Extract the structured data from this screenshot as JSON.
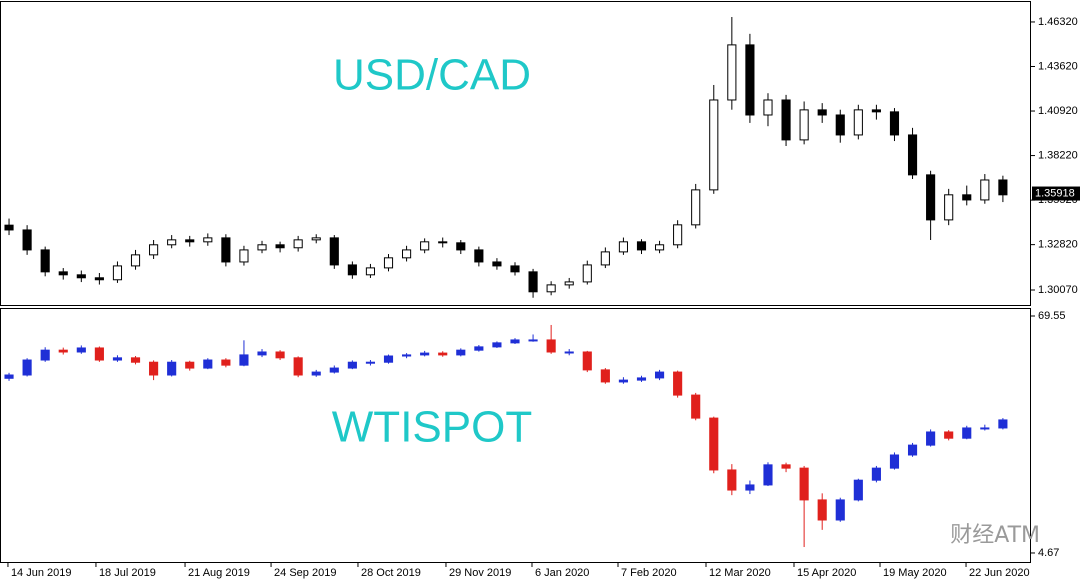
{
  "chart_data": [
    {
      "type": "candlestick",
      "title": "USD/CAD",
      "title_color": "#1fc8c8",
      "up_color": "#ffffff",
      "down_color": "#000000",
      "wick_color": "#000000",
      "ylim": [
        1.2916,
        1.4753
      ],
      "yticks": [
        {
          "value": 1.4632,
          "label": "1.46320"
        },
        {
          "value": 1.4362,
          "label": "1.43620"
        },
        {
          "value": 1.4092,
          "label": "1.40920"
        },
        {
          "value": 1.3822,
          "label": "1.38220"
        },
        {
          "value": 1.3552,
          "label": "1.35520"
        },
        {
          "value": 1.3282,
          "label": "1.32820"
        },
        {
          "value": 1.3007,
          "label": "1.30070"
        }
      ],
      "current_price": 1.35918,
      "xlim": [
        -0.5,
        56.5
      ],
      "open": [
        1.34,
        1.3371,
        1.325,
        1.3117,
        1.3099,
        1.3081,
        1.3069,
        1.3153,
        1.322,
        1.3281,
        1.3311,
        1.3299,
        1.3323,
        1.3177,
        1.325,
        1.3281,
        1.3263,
        1.3311,
        1.3323,
        1.3159,
        1.3099,
        1.3141,
        1.3202,
        1.325,
        1.3299,
        1.3293,
        1.325,
        1.3177,
        1.3153,
        1.3117,
        1.2996,
        1.3038,
        1.3056,
        1.3159,
        1.3238,
        1.3299,
        1.325,
        1.3281,
        1.3402,
        1.3614,
        1.4159,
        1.4493,
        1.4068,
        1.4159,
        1.3917,
        1.4099,
        1.4068,
        1.3947,
        1.4099,
        1.4087,
        1.3947,
        1.3705,
        1.3432,
        1.3584,
        1.3553,
        1.3674
      ],
      "high": [
        1.344,
        1.34,
        1.327,
        1.314,
        1.3125,
        1.311,
        1.318,
        1.325,
        1.331,
        1.334,
        1.3335,
        1.335,
        1.3345,
        1.3275,
        1.3305,
        1.33,
        1.3335,
        1.3345,
        1.334,
        1.318,
        1.3165,
        1.3225,
        1.3275,
        1.332,
        1.3325,
        1.331,
        1.327,
        1.32,
        1.3175,
        1.3135,
        1.306,
        1.308,
        1.3185,
        1.3265,
        1.3325,
        1.3315,
        1.3305,
        1.343,
        1.365,
        1.425,
        1.4662,
        1.456,
        1.42,
        1.419,
        1.415,
        1.414,
        1.41,
        1.413,
        1.413,
        1.411,
        1.399,
        1.373,
        1.362,
        1.364,
        1.371,
        1.37
      ],
      "low": [
        1.334,
        1.322,
        1.309,
        1.307,
        1.3055,
        1.304,
        1.305,
        1.313,
        1.3195,
        1.326,
        1.327,
        1.3275,
        1.315,
        1.3155,
        1.323,
        1.3235,
        1.324,
        1.329,
        1.3135,
        1.3075,
        1.308,
        1.312,
        1.318,
        1.323,
        1.3265,
        1.3225,
        1.315,
        1.313,
        1.3095,
        1.296,
        1.2975,
        1.3015,
        1.304,
        1.314,
        1.322,
        1.3225,
        1.323,
        1.326,
        1.338,
        1.359,
        1.41,
        1.402,
        1.4,
        1.388,
        1.389,
        1.402,
        1.39,
        1.392,
        1.404,
        1.391,
        1.368,
        1.331,
        1.34,
        1.352,
        1.353,
        1.354
      ],
      "close": [
        1.3371,
        1.325,
        1.3117,
        1.3099,
        1.3081,
        1.3069,
        1.3153,
        1.322,
        1.3281,
        1.3311,
        1.3299,
        1.3323,
        1.3177,
        1.325,
        1.3281,
        1.3263,
        1.3311,
        1.3323,
        1.3159,
        1.3099,
        1.3141,
        1.3202,
        1.325,
        1.3299,
        1.3293,
        1.325,
        1.3177,
        1.3153,
        1.3117,
        1.2996,
        1.3038,
        1.3056,
        1.3159,
        1.3238,
        1.3299,
        1.325,
        1.3281,
        1.3402,
        1.3614,
        1.4159,
        1.4493,
        1.4068,
        1.4159,
        1.3917,
        1.4099,
        1.4068,
        1.3947,
        1.4099,
        1.4087,
        1.3947,
        1.3705,
        1.3432,
        1.3584,
        1.3553,
        1.3674,
        1.3584
      ]
    },
    {
      "type": "candlestick",
      "title": "WTISPOT",
      "title_color": "#1fc8c8",
      "up_color": "#1f2fd6",
      "down_color": "#e0201c",
      "ylim": [
        2.2,
        71.47
      ],
      "yticks": [
        69.55,
        4.67
      ],
      "xlim": [
        -0.5,
        56.5
      ],
      "xticks": [
        {
          "value": -0.06,
          "label": "14 Jun 2019"
        },
        {
          "value": 4.81,
          "label": "18 Jul 2019"
        },
        {
          "value": 9.74,
          "label": "21 Aug 2019"
        },
        {
          "value": 14.5,
          "label": "24 Sep 2019"
        },
        {
          "value": 19.31,
          "label": "28 Oct 2019"
        },
        {
          "value": 24.18,
          "label": "29 Nov 2019"
        },
        {
          "value": 28.94,
          "label": "6 Jan 2020"
        },
        {
          "value": 33.7,
          "label": "7 Feb 2020"
        },
        {
          "value": 38.57,
          "label": "12 Mar 2020"
        },
        {
          "value": 43.44,
          "label": "15 Apr 2020"
        },
        {
          "value": 48.2,
          "label": "19 May 2020"
        },
        {
          "value": 52.96,
          "label": "22 Jun 2020"
        }
      ],
      "open": [
        52.5,
        53.4,
        57.5,
        60.2,
        59.7,
        60.8,
        57.5,
        58.1,
        56.9,
        53.4,
        56.9,
        55.3,
        57.5,
        56.1,
        58.9,
        59.7,
        58.1,
        53.4,
        54.2,
        55.3,
        56.9,
        56.9,
        58.6,
        58.9,
        59.4,
        58.9,
        60.2,
        61.1,
        62.2,
        63.0,
        63.0,
        59.7,
        59.7,
        54.8,
        51.5,
        52.0,
        52.6,
        54.2,
        47.9,
        41.6,
        27.4,
        21.9,
        23.3,
        28.8,
        27.9,
        19.2,
        13.7,
        19.2,
        24.6,
        27.9,
        31.5,
        34.2,
        37.8,
        36.1,
        38.9,
        38.9
      ],
      "high": [
        54.0,
        58.0,
        61.0,
        60.9,
        61.5,
        61.2,
        58.8,
        58.6,
        57.4,
        57.5,
        57.3,
        58.0,
        58.0,
        62.9,
        60.5,
        60.2,
        58.5,
        54.8,
        56.0,
        57.4,
        57.5,
        59.0,
        59.4,
        60.0,
        59.9,
        60.7,
        61.6,
        62.6,
        63.5,
        64.5,
        67.1,
        60.5,
        60.0,
        55.3,
        52.8,
        53.2,
        54.8,
        54.6,
        48.5,
        42.0,
        29.0,
        24.5,
        29.5,
        29.4,
        28.5,
        21.0,
        19.8,
        25.0,
        28.5,
        32.2,
        34.8,
        38.5,
        38.3,
        39.5,
        39.8,
        41.6
      ],
      "low": [
        51.8,
        53.0,
        57.0,
        59.0,
        59.2,
        57.0,
        57.0,
        56.3,
        52.0,
        53.0,
        54.6,
        55.0,
        55.5,
        55.8,
        58.3,
        57.5,
        52.8,
        52.9,
        53.8,
        55.0,
        56.0,
        56.5,
        58.0,
        58.5,
        58.4,
        58.5,
        59.8,
        60.8,
        61.9,
        62.5,
        59.2,
        58.8,
        54.2,
        51.0,
        51.0,
        51.5,
        52.0,
        47.2,
        41.0,
        26.5,
        20.5,
        20.8,
        23.0,
        26.8,
        6.3,
        11.0,
        13.2,
        18.8,
        24.0,
        27.5,
        31.0,
        33.8,
        35.5,
        35.8,
        38.2,
        38.5
      ],
      "close": [
        53.4,
        57.5,
        60.2,
        59.7,
        60.8,
        57.5,
        58.1,
        56.9,
        53.4,
        56.9,
        55.3,
        57.5,
        56.1,
        58.9,
        59.7,
        58.1,
        53.4,
        54.2,
        55.3,
        56.9,
        56.9,
        58.6,
        58.9,
        59.4,
        58.9,
        60.2,
        61.1,
        62.2,
        63.0,
        63.0,
        59.7,
        59.7,
        54.8,
        51.5,
        52.0,
        52.6,
        54.2,
        47.9,
        41.6,
        27.4,
        21.9,
        23.3,
        28.8,
        27.9,
        19.2,
        13.7,
        19.2,
        24.6,
        27.9,
        31.5,
        34.2,
        37.8,
        36.1,
        38.9,
        38.9,
        41.1
      ]
    }
  ],
  "watermark": "财经ATM"
}
